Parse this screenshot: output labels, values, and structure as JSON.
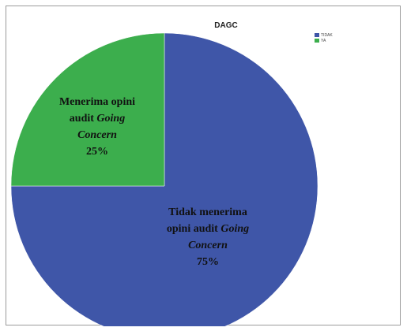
{
  "chart_data": {
    "type": "pie",
    "title": "DAGC",
    "slices": [
      {
        "name": "TIDAK",
        "value": 75,
        "color": "#3f56a8",
        "label_lines": [
          [
            {
              "text": "Tidak menerima",
              "italic": false
            }
          ],
          [
            {
              "text": "opini audit ",
              "italic": false
            },
            {
              "text": "Going",
              "italic": true
            }
          ],
          [
            {
              "text": "Concern",
              "italic": true
            }
          ],
          [
            {
              "text": "75%",
              "italic": false
            }
          ]
        ]
      },
      {
        "name": "YA",
        "value": 25,
        "color": "#3cae4d",
        "label_lines": [
          [
            {
              "text": "Menerima opini",
              "italic": false
            }
          ],
          [
            {
              "text": "audit ",
              "italic": false
            },
            {
              "text": "Going",
              "italic": true
            }
          ],
          [
            {
              "text": "Concern",
              "italic": true
            }
          ],
          [
            {
              "text": "25%",
              "italic": false
            }
          ]
        ]
      }
    ],
    "start_angle_deg": 0,
    "direction": "clockwise",
    "legend": {
      "position": "top-right",
      "entries": [
        "TIDAK",
        "YA"
      ]
    }
  }
}
